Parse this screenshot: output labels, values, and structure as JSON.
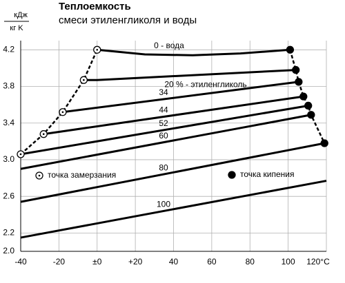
{
  "chart_data": {
    "type": "line",
    "title": "Теплоемкость",
    "subtitle": "смеси этиленгликоля и воды",
    "y_unit": {
      "numerator": "кДж",
      "denominator": "кг K"
    },
    "xlim": [
      -40,
      120
    ],
    "xticks": [
      -40,
      {
        "value": -20,
        "label": "-20"
      },
      {
        "value": 0,
        "label": "±0"
      },
      {
        "value": 20,
        "label": "+20"
      },
      40,
      60,
      80,
      100,
      {
        "value": 120,
        "label": "120°C"
      }
    ],
    "ylim": [
      2.0,
      4.3
    ],
    "yticks": [
      {
        "value": 2.0,
        "label": "2.0"
      },
      2.2,
      2.6,
      {
        "value": 3.0,
        "label": "3.0"
      },
      3.4,
      3.8,
      4.2
    ],
    "grid": true,
    "series": [
      {
        "name": "0 - вода",
        "color": "#000000",
        "style": "solid",
        "x": [
          0,
          25,
          50,
          75,
          101
        ],
        "values": [
          4.2,
          4.15,
          4.14,
          4.16,
          4.2
        ]
      },
      {
        "name": "20 % - этиленгликоль",
        "color": "#000000",
        "style": "solid",
        "x": [
          -7,
          0,
          104
        ],
        "values": [
          3.87,
          3.87,
          3.98
        ]
      },
      {
        "name": "34",
        "color": "#000000",
        "style": "solid",
        "x": [
          -18,
          105.5
        ],
        "values": [
          3.52,
          3.85
        ]
      },
      {
        "name": "44",
        "color": "#000000",
        "style": "solid",
        "x": [
          -28,
          108
        ],
        "values": [
          3.28,
          3.69
        ]
      },
      {
        "name": "52",
        "color": "#000000",
        "style": "solid",
        "x": [
          -40,
          110.5
        ],
        "values": [
          3.06,
          3.59
        ]
      },
      {
        "name": "60",
        "color": "#000000",
        "style": "solid",
        "x": [
          -40,
          112
        ],
        "values": [
          2.9,
          3.49
        ]
      },
      {
        "name": "80",
        "color": "#000000",
        "style": "solid",
        "x": [
          -40,
          119
        ],
        "values": [
          2.54,
          3.18
        ]
      },
      {
        "name": "100",
        "color": "#000000",
        "style": "solid",
        "x": [
          -40,
          120
        ],
        "values": [
          2.15,
          2.77
        ]
      },
      {
        "name": "точка замерзания",
        "color": "#000000",
        "style": "dashed",
        "marker": "open",
        "x": [
          -40,
          -28,
          -18,
          -7,
          0
        ],
        "values": [
          3.06,
          3.28,
          3.52,
          3.87,
          4.2
        ]
      },
      {
        "name": "точка кипения",
        "color": "#000000",
        "style": "dashed",
        "marker": "filled",
        "x": [
          101,
          104,
          105.5,
          108,
          110.5,
          112,
          119
        ],
        "values": [
          4.2,
          3.98,
          3.85,
          3.69,
          3.59,
          3.49,
          3.18
        ]
      }
    ]
  }
}
